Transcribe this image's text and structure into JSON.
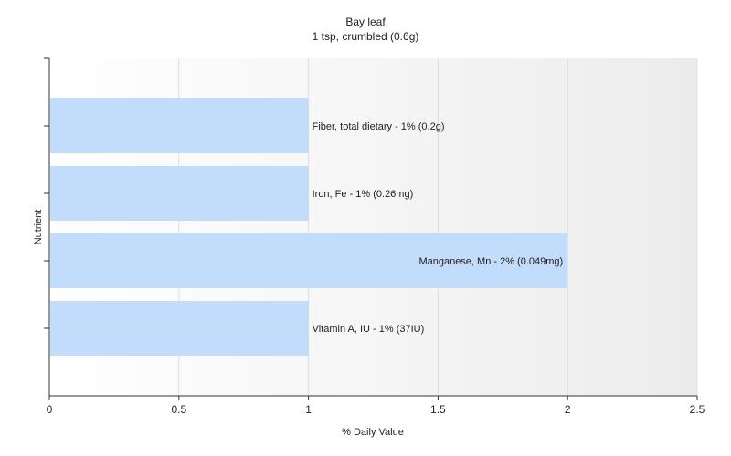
{
  "chart_data": {
    "type": "bar",
    "orientation": "horizontal",
    "title": "Bay leaf",
    "subtitle": "1 tsp, crumbled (0.6g)",
    "xlabel": "% Daily Value",
    "ylabel": "Nutrient",
    "xlim": [
      0,
      2.5
    ],
    "xticks": [
      "0",
      "0.5",
      "1",
      "1.5",
      "2",
      "2.5"
    ],
    "grid": true,
    "categories": [
      "Fiber, total dietary",
      "Iron, Fe",
      "Manganese, Mn",
      "Vitamin A, IU"
    ],
    "values": [
      1,
      1,
      2,
      1
    ],
    "data_labels": [
      "Fiber, total dietary - 1% (0.2g)",
      "Iron, Fe - 1% (0.26mg)",
      "Manganese, Mn - 2% (0.049mg)",
      "Vitamin A, IU - 1% (37IU)"
    ],
    "bar_color": "#c2dcfc",
    "label_position": [
      "outside",
      "outside",
      "inside",
      "outside"
    ]
  }
}
